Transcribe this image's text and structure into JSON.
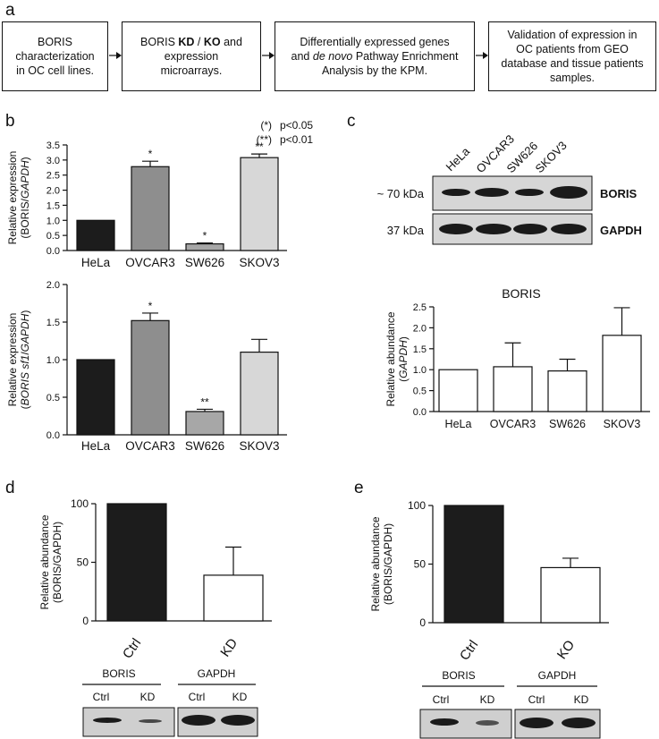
{
  "panel_labels": {
    "a": "a",
    "b": "b",
    "c": "c",
    "d": "d",
    "e": "e"
  },
  "flow": {
    "box1": [
      "BORIS",
      "characterization",
      "in OC cell lines."
    ],
    "box2": {
      "pre": "BORIS ",
      "kd": "KD",
      "sep": " / ",
      "ko": "KO",
      "post": " and",
      "line2": "expression",
      "line3": "microarrays."
    },
    "box3": {
      "line1": "Differentially expressed genes",
      "pre": "and ",
      "italic": "de novo",
      "post": " Pathway Enrichment",
      "line3": "Analysis by the KPM."
    },
    "box4": [
      "Validation of expression in",
      "OC patients from GEO",
      "database and tissue patients",
      "samples."
    ]
  },
  "significance_legend": [
    {
      "symbol": "(*)",
      "text": "p<0.05"
    },
    {
      "symbol": "(**)",
      "text": "p<0.01"
    }
  ],
  "blot_c": {
    "lanes": [
      "HeLa",
      "OVCAR3",
      "SW626",
      "SKOV3"
    ],
    "rows": [
      {
        "size": "~ 70 kDa",
        "protein": "BORIS"
      },
      {
        "size": "37 kDa",
        "protein": "GAPDH"
      }
    ]
  },
  "blot_d": {
    "groups": [
      {
        "name": "BORIS",
        "lanes": [
          "Ctrl",
          "KD"
        ]
      },
      {
        "name": "GAPDH",
        "lanes": [
          "Ctrl",
          "KD"
        ]
      }
    ]
  },
  "blot_e": {
    "groups": [
      {
        "name": "BORIS",
        "lanes": [
          "Ctrl",
          "KD"
        ]
      },
      {
        "name": "GAPDH",
        "lanes": [
          "Ctrl",
          "KD"
        ]
      }
    ]
  },
  "chart_data": [
    {
      "id": "b1",
      "type": "bar",
      "title": "",
      "ylabel_parts": [
        {
          "text": "Relative expression",
          "italic": false,
          "newline": true
        },
        {
          "text": "(BORIS/",
          "italic": false
        },
        {
          "text": "GAPDH",
          "italic": true
        },
        {
          "text": ")",
          "italic": false
        }
      ],
      "categories": [
        "HeLa",
        "OVCAR3",
        "SW626",
        "SKOV3"
      ],
      "values": [
        1.0,
        2.78,
        0.22,
        3.08
      ],
      "errors": [
        0,
        0.18,
        0.03,
        0.12
      ],
      "annotations": [
        "",
        "*",
        "*",
        "**"
      ],
      "colors": [
        "#1c1c1c",
        "#8e8e8e",
        "#a7a7a7",
        "#d7d7d7"
      ],
      "ylim": [
        0,
        3.5
      ],
      "yticks": [
        "0.0",
        "0.5",
        "1.0",
        "1.5",
        "2.0",
        "2.5",
        "3.0",
        "3.5"
      ]
    },
    {
      "id": "b2",
      "type": "bar",
      "title": "",
      "ylabel_parts": [
        {
          "text": "Relative expression",
          "italic": false,
          "newline": true
        },
        {
          "text": "(",
          "italic": false
        },
        {
          "text": "BORIS sf1",
          "italic": true
        },
        {
          "text": "/",
          "italic": false
        },
        {
          "text": "GAPDH",
          "italic": true
        },
        {
          "text": ")",
          "italic": false
        }
      ],
      "categories": [
        "HeLa",
        "OVCAR3",
        "SW626",
        "SKOV3"
      ],
      "values": [
        1.0,
        1.52,
        0.31,
        1.1
      ],
      "errors": [
        0,
        0.1,
        0.03,
        0.17
      ],
      "annotations": [
        "",
        "*",
        "**",
        ""
      ],
      "colors": [
        "#1c1c1c",
        "#8e8e8e",
        "#a7a7a7",
        "#d7d7d7"
      ],
      "ylim": [
        0,
        2.0
      ],
      "yticks": [
        "0.0",
        "0.5",
        "1.0",
        "1.5",
        "2.0"
      ]
    },
    {
      "id": "c",
      "type": "bar",
      "title": "BORIS",
      "ylabel_parts": [
        {
          "text": "Relative abundance",
          "italic": false,
          "newline": true
        },
        {
          "text": "(",
          "italic": false
        },
        {
          "text": "GAPDH",
          "italic": true
        },
        {
          "text": ")",
          "italic": false
        }
      ],
      "categories": [
        "HeLa",
        "OVCAR3",
        "SW626",
        "SKOV3"
      ],
      "values": [
        1.0,
        1.07,
        0.97,
        1.82
      ],
      "errors": [
        0,
        0.57,
        0.28,
        0.66
      ],
      "annotations": [
        "",
        "",
        "",
        ""
      ],
      "colors": [
        "#ffffff",
        "#ffffff",
        "#ffffff",
        "#ffffff"
      ],
      "ylim": [
        0,
        2.5
      ],
      "yticks": [
        "0.0",
        "0.5",
        "1.0",
        "1.5",
        "2.0",
        "2.5"
      ]
    },
    {
      "id": "d",
      "type": "bar",
      "title": "",
      "ylabel_parts": [
        {
          "text": "Relative abundance",
          "italic": false,
          "newline": true
        },
        {
          "text": "(BORIS/GAPDH)",
          "italic": false
        }
      ],
      "categories": [
        "Ctrl",
        "KD"
      ],
      "values": [
        100,
        39
      ],
      "errors": [
        0,
        24
      ],
      "annotations": [
        "",
        ""
      ],
      "colors": [
        "#1c1c1c",
        "#ffffff"
      ],
      "ylim": [
        0,
        100
      ],
      "yticks": [
        "0",
        "50",
        "100"
      ]
    },
    {
      "id": "e",
      "type": "bar",
      "title": "",
      "ylabel_parts": [
        {
          "text": "Relative abundance",
          "italic": false,
          "newline": true
        },
        {
          "text": "(BORIS/GAPDH)",
          "italic": false
        }
      ],
      "categories": [
        "Ctrl",
        "KO"
      ],
      "values": [
        100,
        47
      ],
      "errors": [
        0,
        8
      ],
      "annotations": [
        "",
        ""
      ],
      "colors": [
        "#1c1c1c",
        "#ffffff"
      ],
      "ylim": [
        0,
        100
      ],
      "yticks": [
        "0",
        "50",
        "100"
      ]
    }
  ]
}
